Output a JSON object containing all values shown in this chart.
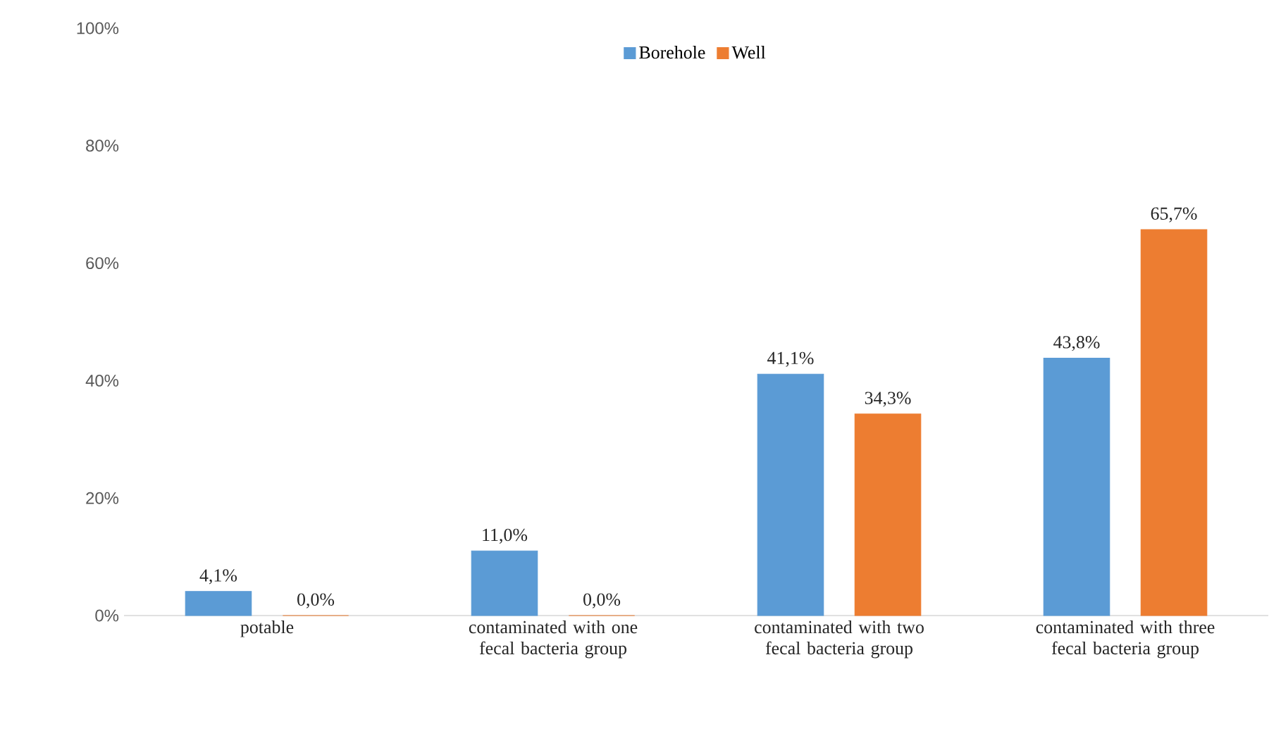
{
  "chart_data": {
    "type": "bar",
    "categories": [
      "potable",
      "contaminated with one fecal bacteria group",
      "contaminated with two fecal bacteria group",
      "contaminated with three fecal bacteria group"
    ],
    "series": [
      {
        "name": "Borehole",
        "color": "#5b9bd5",
        "values": [
          4.1,
          11.0,
          41.1,
          43.8
        ],
        "value_labels": [
          "4,1%",
          "11,0%",
          "41,1%",
          "43,8%"
        ]
      },
      {
        "name": "Well",
        "color": "#ed7d31",
        "values": [
          0.0,
          0.0,
          34.3,
          65.7
        ],
        "value_labels": [
          "0,0%",
          "0,0%",
          "34,3%",
          "65,7%"
        ]
      }
    ],
    "ylim": [
      0,
      100
    ],
    "yticks": [
      {
        "value": 0,
        "label": "0%"
      },
      {
        "value": 20,
        "label": "20%"
      },
      {
        "value": 40,
        "label": "40%"
      },
      {
        "value": 60,
        "label": "60%"
      },
      {
        "value": 80,
        "label": "80%"
      },
      {
        "value": 100,
        "label": "100%"
      }
    ],
    "legend": "top"
  }
}
